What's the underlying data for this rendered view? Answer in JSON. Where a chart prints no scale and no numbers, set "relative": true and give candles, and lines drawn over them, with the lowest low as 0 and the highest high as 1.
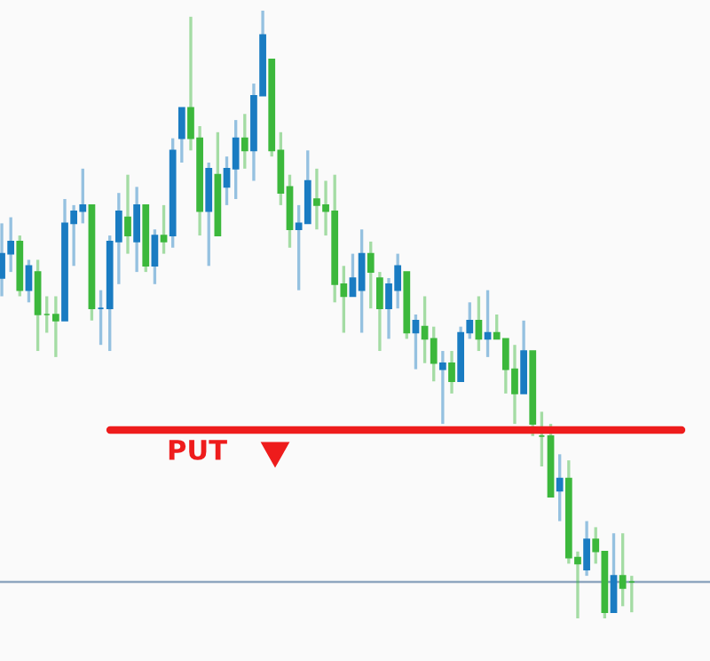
{
  "chart_data": {
    "type": "candlestick",
    "relative": true,
    "categories": [
      null,
      null,
      null,
      null,
      null,
      null,
      null,
      null,
      null,
      null,
      null,
      null,
      null,
      null,
      null,
      null,
      null,
      null,
      null,
      null,
      null,
      null,
      null,
      null,
      null,
      null,
      null,
      null,
      null,
      null,
      null,
      null,
      null,
      null,
      null,
      null,
      null,
      null,
      null,
      null,
      null,
      null,
      null,
      null,
      null,
      null,
      null,
      null,
      null,
      null,
      null,
      null,
      null,
      null,
      null,
      null,
      null,
      null,
      null,
      null,
      null,
      null,
      null,
      null,
      null,
      null,
      null,
      null,
      null,
      null,
      null
    ],
    "ohlc": [
      [
        0.56,
        0.65,
        0.53,
        0.6
      ],
      [
        0.6,
        0.66,
        0.57,
        0.62
      ],
      [
        0.62,
        0.63,
        0.53,
        0.54
      ],
      [
        0.54,
        0.59,
        0.52,
        0.58
      ],
      [
        0.57,
        0.59,
        0.44,
        0.5
      ],
      [
        0.5,
        0.53,
        0.47,
        0.5
      ],
      [
        0.5,
        0.53,
        0.43,
        0.49
      ],
      [
        0.49,
        0.69,
        0.49,
        0.65
      ],
      [
        0.65,
        0.68,
        0.58,
        0.67
      ],
      [
        0.67,
        0.74,
        0.65,
        0.68
      ],
      [
        0.68,
        0.68,
        0.49,
        0.51
      ],
      [
        0.51,
        0.54,
        0.45,
        0.51
      ],
      [
        0.51,
        0.63,
        0.44,
        0.62
      ],
      [
        0.62,
        0.7,
        0.55,
        0.67
      ],
      [
        0.66,
        0.73,
        0.6,
        0.63
      ],
      [
        0.62,
        0.71,
        0.57,
        0.68
      ],
      [
        0.68,
        0.68,
        0.57,
        0.58
      ],
      [
        0.58,
        0.64,
        0.55,
        0.63
      ],
      [
        0.63,
        0.68,
        0.6,
        0.62
      ],
      [
        0.63,
        0.79,
        0.61,
        0.77
      ],
      [
        0.79,
        0.84,
        0.75,
        0.84
      ],
      [
        0.84,
        0.99,
        0.77,
        0.79
      ],
      [
        0.79,
        0.81,
        0.63,
        0.67
      ],
      [
        0.67,
        0.75,
        0.58,
        0.74
      ],
      [
        0.73,
        0.8,
        0.63,
        0.63
      ],
      [
        0.71,
        0.76,
        0.68,
        0.74
      ],
      [
        0.74,
        0.82,
        0.69,
        0.79
      ],
      [
        0.79,
        0.83,
        0.74,
        0.77
      ],
      [
        0.77,
        0.88,
        0.72,
        0.86
      ],
      [
        0.86,
        1.0,
        0.86,
        0.96
      ],
      [
        0.92,
        0.92,
        0.76,
        0.77
      ],
      [
        0.77,
        0.8,
        0.68,
        0.7
      ],
      [
        0.71,
        0.73,
        0.61,
        0.64
      ],
      [
        0.64,
        0.68,
        0.54,
        0.65
      ],
      [
        0.65,
        0.77,
        0.65,
        0.72
      ],
      [
        0.69,
        0.74,
        0.64,
        0.68
      ],
      [
        0.68,
        0.72,
        0.63,
        0.67
      ],
      [
        0.67,
        0.73,
        0.52,
        0.55
      ],
      [
        0.55,
        0.58,
        0.47,
        0.53
      ],
      [
        0.53,
        0.6,
        0.53,
        0.56
      ],
      [
        0.54,
        0.64,
        0.47,
        0.6
      ],
      [
        0.6,
        0.62,
        0.51,
        0.57
      ],
      [
        0.56,
        0.57,
        0.44,
        0.51
      ],
      [
        0.51,
        0.56,
        0.46,
        0.55
      ],
      [
        0.54,
        0.6,
        0.51,
        0.58
      ],
      [
        0.57,
        0.57,
        0.46,
        0.47
      ],
      [
        0.47,
        0.5,
        0.41,
        0.49
      ],
      [
        0.48,
        0.53,
        0.42,
        0.46
      ],
      [
        0.46,
        0.48,
        0.39,
        0.42
      ],
      [
        0.41,
        0.44,
        0.32,
        0.42
      ],
      [
        0.42,
        0.44,
        0.37,
        0.39
      ],
      [
        0.39,
        0.48,
        0.39,
        0.47
      ],
      [
        0.47,
        0.52,
        0.46,
        0.49
      ],
      [
        0.49,
        0.53,
        0.44,
        0.46
      ],
      [
        0.46,
        0.54,
        0.43,
        0.47
      ],
      [
        0.47,
        0.5,
        0.46,
        0.46
      ],
      [
        0.46,
        0.46,
        0.37,
        0.41
      ],
      [
        0.41,
        0.45,
        0.32,
        0.37
      ],
      [
        0.37,
        0.49,
        0.37,
        0.44
      ],
      [
        0.44,
        0.44,
        0.3,
        0.32
      ],
      [
        0.3,
        0.34,
        0.25,
        0.3
      ],
      [
        0.3,
        0.32,
        0.2,
        0.2
      ],
      [
        0.21,
        0.27,
        0.16,
        0.23
      ],
      [
        0.23,
        0.26,
        0.09,
        0.1
      ],
      [
        0.1,
        0.11,
        0.0,
        0.09
      ],
      [
        0.08,
        0.16,
        0.07,
        0.13
      ],
      [
        0.13,
        0.15,
        0.09,
        0.11
      ],
      [
        0.11,
        0.11,
        0.0,
        0.01
      ],
      [
        0.01,
        0.14,
        0.01,
        0.07
      ],
      [
        0.07,
        0.14,
        0.02,
        0.05
      ],
      [
        0.06,
        0.07,
        0.01,
        0.06
      ]
    ],
    "colors": [
      "#1a7cc2",
      "#1a7cc2",
      "#3cb83c",
      "#1a7cc2",
      "#3cb83c",
      "#3cb83c",
      "#3cb83c",
      "#1a7cc2",
      "#1a7cc2",
      "#1a7cc2",
      "#3cb83c",
      "#1a7cc2",
      "#1a7cc2",
      "#1a7cc2",
      "#3cb83c",
      "#1a7cc2",
      "#3cb83c",
      "#1a7cc2",
      "#3cb83c",
      "#1a7cc2",
      "#1a7cc2",
      "#3cb83c",
      "#3cb83c",
      "#1a7cc2",
      "#3cb83c",
      "#1a7cc2",
      "#1a7cc2",
      "#3cb83c",
      "#1a7cc2",
      "#1a7cc2",
      "#3cb83c",
      "#3cb83c",
      "#3cb83c",
      "#1a7cc2",
      "#1a7cc2",
      "#3cb83c",
      "#3cb83c",
      "#3cb83c",
      "#3cb83c",
      "#1a7cc2",
      "#1a7cc2",
      "#3cb83c",
      "#3cb83c",
      "#1a7cc2",
      "#1a7cc2",
      "#3cb83c",
      "#1a7cc2",
      "#3cb83c",
      "#3cb83c",
      "#1a7cc2",
      "#3cb83c",
      "#1a7cc2",
      "#1a7cc2",
      "#3cb83c",
      "#1a7cc2",
      "#3cb83c",
      "#3cb83c",
      "#3cb83c",
      "#1a7cc2",
      "#3cb83c",
      "#3cb83c",
      "#3cb83c",
      "#1a7cc2",
      "#3cb83c",
      "#3cb83c",
      "#1a7cc2",
      "#3cb83c",
      "#3cb83c",
      "#1a7cc2",
      "#3cb83c",
      "#3cb83c"
    ],
    "ref_lines": [
      {
        "axis": "y",
        "value": 0.31,
        "label": "PUT",
        "color": "#ee1c1c",
        "line_style": "solid"
      },
      {
        "axis": "y",
        "value": 0.06,
        "color": "#8fa6bf",
        "line_style": "solid"
      }
    ]
  }
}
